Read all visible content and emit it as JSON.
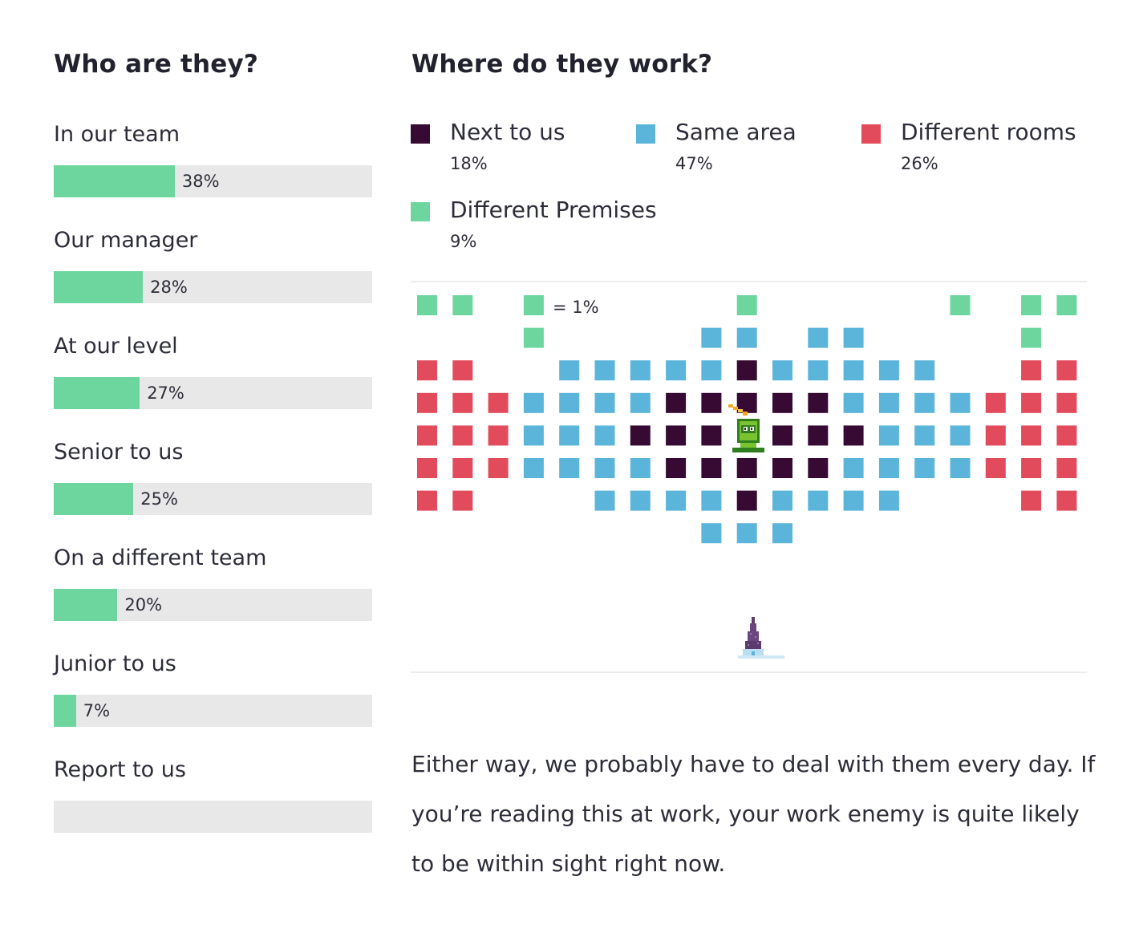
{
  "left_heading": "Who are they?",
  "right_heading": "Where do they work?",
  "colors": {
    "bar_fill": "#6dd69f",
    "bar_track": "#e8e8e8",
    "next_to_us": "#360a33",
    "same_area": "#5bb4da",
    "different_rooms": "#e24b5c",
    "different_premises": "#6dd69f",
    "divider": "#e6e6e6"
  },
  "chart_data": [
    {
      "type": "bar",
      "orientation": "horizontal",
      "title": "Who are they?",
      "categories": [
        "In our team",
        "Our manager",
        "At our level",
        "Senior to us",
        "On a different team",
        "Junior to us",
        "Report to us"
      ],
      "values": [
        38,
        28,
        27,
        25,
        20,
        7,
        0
      ],
      "value_labels": [
        "38%",
        "28%",
        "27%",
        "25%",
        "20%",
        "7%",
        ""
      ],
      "unit": "%",
      "xlim": [
        0,
        100
      ]
    },
    {
      "type": "waffle",
      "title": "Where do they work?",
      "unit_label": "= 1%",
      "categories": [
        "Next to us",
        "Same area",
        "Different rooms",
        "Different Premises"
      ],
      "values": [
        18,
        47,
        26,
        9
      ],
      "value_labels": [
        "18%",
        "47%",
        "26%",
        "9%"
      ]
    }
  ],
  "paragraph": "Either way, we probably have to deal with them every day. If you’re reading this at work, your work enemy is quite likely to be within sight right now."
}
